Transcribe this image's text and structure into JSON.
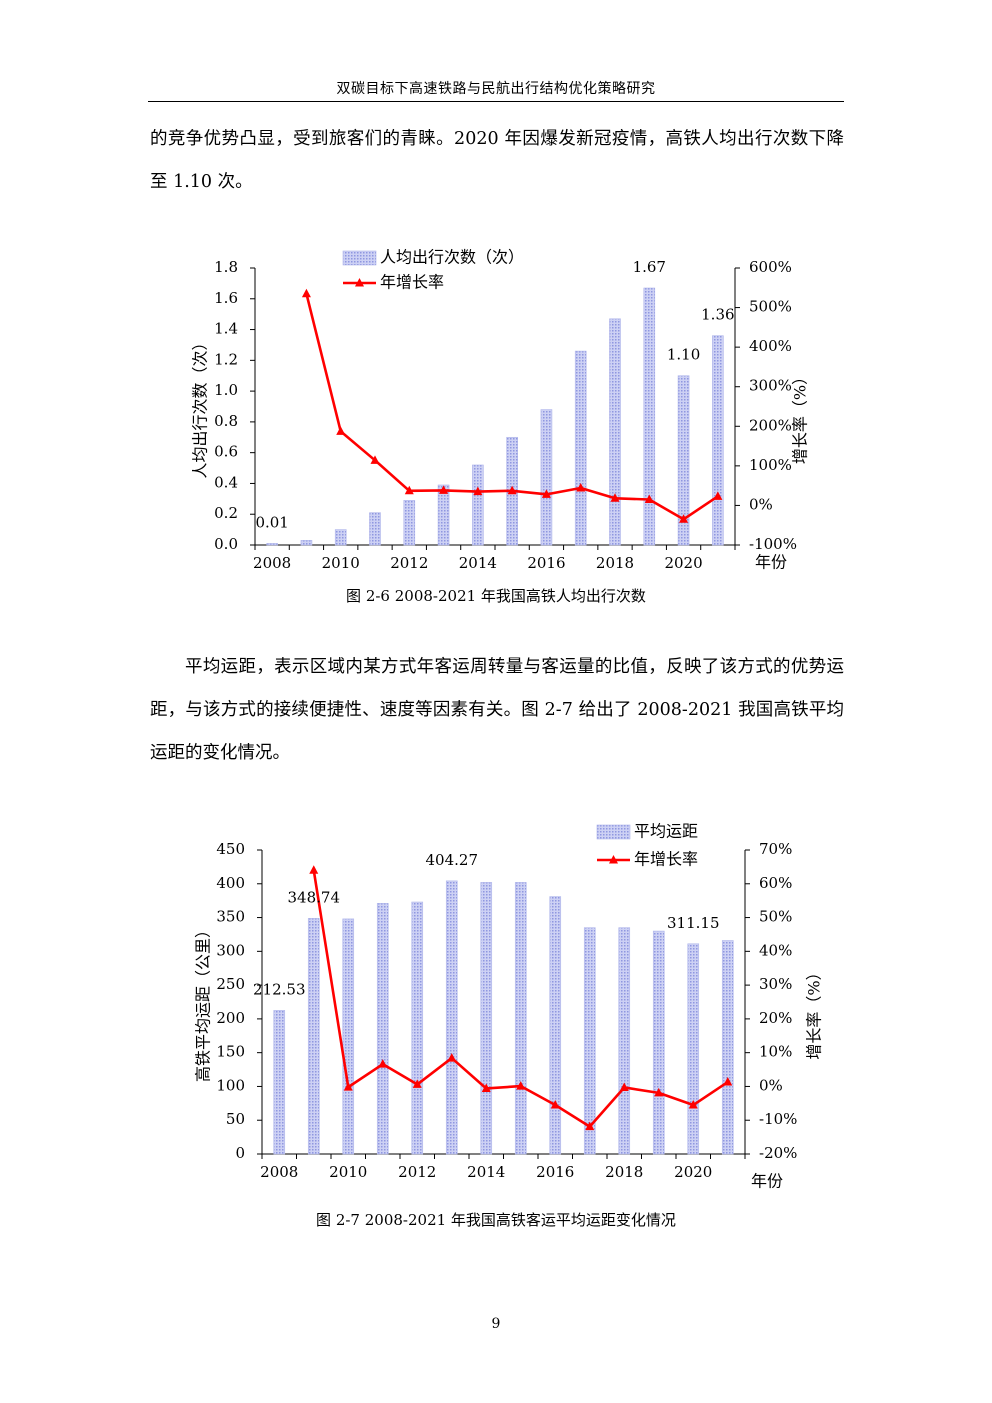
{
  "header": {
    "title": "双碳目标下高速铁路与民航出行结构优化策略研究"
  },
  "paragraphs": {
    "p1": "的竞争优势凸显，受到旅客们的青睐。2020 年因爆发新冠疫情，高铁人均出行次数下降至 1.10 次。",
    "p2": "平均运距，表示区域内某方式年客运周转量与客运量的比值，反映了该方式的优势运距，与该方式的接续便捷性、速度等因素有关。图 2-7 给出了 2008-2021 我国高铁平均运距的变化情况。"
  },
  "captions": {
    "fig1": "图 2-6 2008-2021 年我国高铁人均出行次数",
    "fig2": "图 2-7 2008-2021 年我国高铁客运平均运距变化情况"
  },
  "page_number": "9",
  "colors": {
    "bar": "#aeb4ea",
    "line": "#ff0000"
  },
  "chart_data": [
    {
      "type": "bar",
      "title": "",
      "xlabel": "年份",
      "ylabel_left": "人均出行次数（次）",
      "ylabel_right": "增长率（%）",
      "x": [
        2008,
        2009,
        2010,
        2011,
        2012,
        2013,
        2014,
        2015,
        2016,
        2017,
        2018,
        2019,
        2020,
        2021
      ],
      "x_tick_labels": [
        "2008",
        "2010",
        "2012",
        "2014",
        "2016",
        "2018",
        "2020"
      ],
      "ylim_left": [
        0,
        1.8
      ],
      "y_ticks_left": [
        "0.0",
        "0.2",
        "0.4",
        "0.6",
        "0.8",
        "1.0",
        "1.2",
        "1.4",
        "1.6",
        "1.8"
      ],
      "ylim_right": [
        -100,
        600
      ],
      "y_ticks_right": [
        "-100%",
        "0%",
        "100%",
        "200%",
        "300%",
        "400%",
        "500%",
        "600%"
      ],
      "legend_position": "top-center",
      "series": [
        {
          "name": "人均出行次数（次）",
          "kind": "bar",
          "axis": "left",
          "values": [
            0.01,
            0.03,
            0.1,
            0.21,
            0.29,
            0.39,
            0.52,
            0.7,
            0.88,
            1.26,
            1.47,
            1.67,
            1.1,
            1.36
          ]
        },
        {
          "name": "年增长率",
          "kind": "line",
          "axis": "right",
          "values": [
            null,
            535,
            187,
            114,
            37,
            38,
            35,
            37,
            28,
            44,
            18,
            15,
            -35,
            23
          ]
        }
      ],
      "data_labels": [
        {
          "index": 0,
          "text": "0.01"
        },
        {
          "index": 11,
          "text": "1.67"
        },
        {
          "index": 12,
          "text": "1.10"
        },
        {
          "index": 13,
          "text": "1.36"
        }
      ]
    },
    {
      "type": "bar",
      "title": "",
      "xlabel": "年份",
      "ylabel_left": "高铁平均运距（公里）",
      "ylabel_right": "增长率（%）",
      "x": [
        2008,
        2009,
        2010,
        2011,
        2012,
        2013,
        2014,
        2015,
        2016,
        2017,
        2018,
        2019,
        2020,
        2021
      ],
      "x_tick_labels": [
        "2008",
        "2010",
        "2012",
        "2014",
        "2016",
        "2018",
        "2020"
      ],
      "ylim_left": [
        0,
        450
      ],
      "y_ticks_left": [
        "0",
        "50",
        "100",
        "150",
        "200",
        "250",
        "300",
        "350",
        "400",
        "450"
      ],
      "ylim_right": [
        -20,
        70
      ],
      "y_ticks_right": [
        "-20%",
        "-10%",
        "0%",
        "10%",
        "20%",
        "30%",
        "40%",
        "50%",
        "60%",
        "70%"
      ],
      "legend_position": "top-right",
      "series": [
        {
          "name": "平均运距",
          "kind": "bar",
          "axis": "left",
          "values": [
            212.53,
            348.74,
            348,
            371,
            373,
            404.27,
            402,
            402,
            381,
            335,
            335,
            330,
            311.15,
            316
          ]
        },
        {
          "name": "年增长率",
          "kind": "line",
          "axis": "right",
          "values": [
            null,
            64,
            -0.2,
            6.6,
            0.6,
            8.4,
            -0.6,
            0.1,
            -5.5,
            -11.9,
            -0.3,
            -1.9,
            -5.5,
            1.3
          ]
        }
      ],
      "data_labels": [
        {
          "index": 0,
          "text": "212.53"
        },
        {
          "index": 1,
          "text": "348.74"
        },
        {
          "index": 5,
          "text": "404.27"
        },
        {
          "index": 12,
          "text": "311.15"
        }
      ]
    }
  ]
}
